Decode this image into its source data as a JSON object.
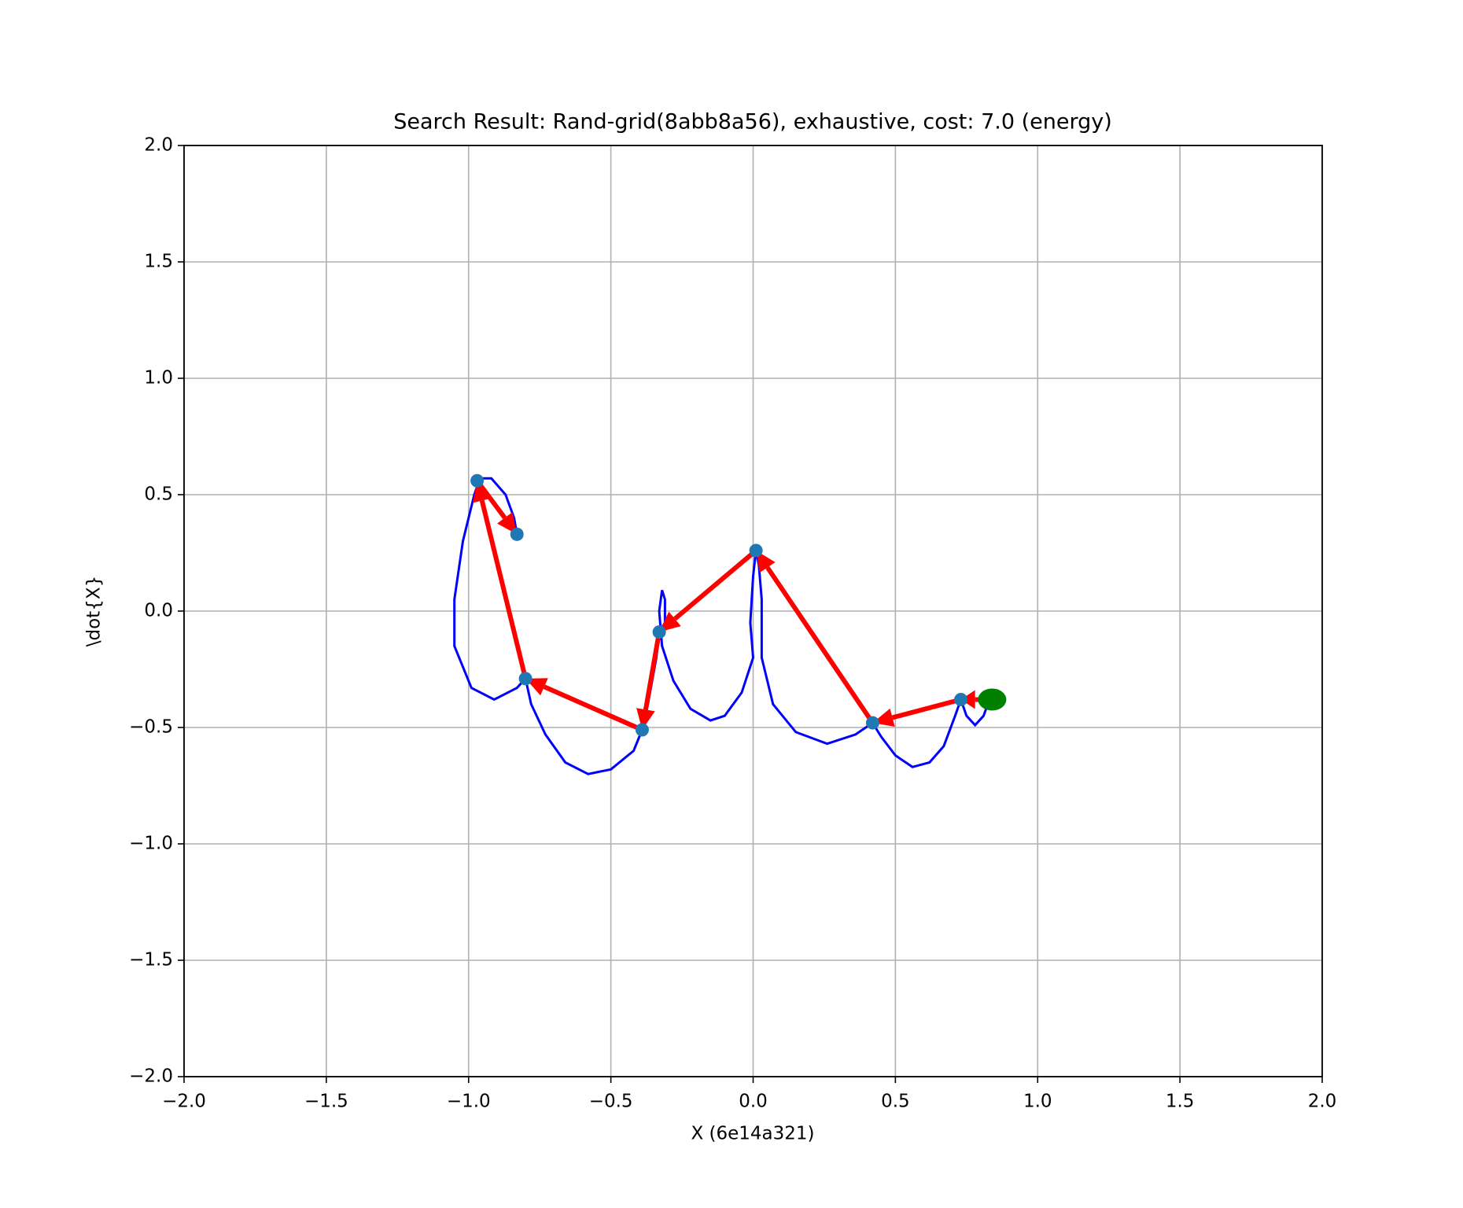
{
  "chart_data": {
    "type": "trajectory",
    "title": "Search Result: Rand-grid(8abb8a56), exhaustive, cost: 7.0 (energy)",
    "xlabel": "X     (6e14a321)",
    "ylabel": "\\dot{X}",
    "xlim": [
      -2,
      2
    ],
    "ylim": [
      -2,
      2
    ],
    "xticks": [
      {
        "value": -2,
        "label": "−2.0"
      },
      {
        "value": -1.5,
        "label": "−1.5"
      },
      {
        "value": -1,
        "label": "−1.0"
      },
      {
        "value": -0.5,
        "label": "−0.5"
      },
      {
        "value": 0,
        "label": "0.0"
      },
      {
        "value": 0.5,
        "label": "0.5"
      },
      {
        "value": 1,
        "label": "1.0"
      },
      {
        "value": 1.5,
        "label": "1.5"
      },
      {
        "value": 2,
        "label": "2.0"
      }
    ],
    "yticks": [
      {
        "value": -2,
        "label": "−2.0"
      },
      {
        "value": -1.5,
        "label": "−1.5"
      },
      {
        "value": -1,
        "label": "−1.0"
      },
      {
        "value": -0.5,
        "label": "−0.5"
      },
      {
        "value": 0,
        "label": "0.0"
      },
      {
        "value": 0.5,
        "label": "0.5"
      },
      {
        "value": 1,
        "label": "1.0"
      },
      {
        "value": 1.5,
        "label": "1.5"
      },
      {
        "value": 2,
        "label": "2.0"
      }
    ],
    "grid": true,
    "trajectory": {
      "color": "#0000ff",
      "x": [
        0.83,
        0.81,
        0.78,
        0.75,
        0.73,
        0.71,
        0.67,
        0.62,
        0.56,
        0.5,
        0.45,
        0.42,
        0.36,
        0.26,
        0.15,
        0.07,
        0.03,
        0.03,
        0.02,
        0.01,
        0.0,
        -0.01,
        0.0,
        -0.04,
        -0.1,
        -0.15,
        -0.22,
        -0.28,
        -0.32,
        -0.33,
        -0.32,
        -0.31,
        -0.31,
        -0.33,
        -0.34,
        -0.37,
        -0.39,
        -0.42,
        -0.5,
        -0.58,
        -0.66,
        -0.73,
        -0.78,
        -0.8,
        -0.83,
        -0.91,
        -0.99,
        -1.05,
        -1.05,
        -1.02,
        -0.98,
        -0.96,
        -0.92,
        -0.87,
        -0.84,
        -0.83
      ],
      "y": [
        -0.38,
        -0.45,
        -0.49,
        -0.45,
        -0.38,
        -0.45,
        -0.58,
        -0.65,
        -0.67,
        -0.62,
        -0.54,
        -0.48,
        -0.53,
        -0.57,
        -0.52,
        -0.4,
        -0.2,
        0.05,
        0.2,
        0.26,
        0.15,
        -0.05,
        -0.2,
        -0.35,
        -0.45,
        -0.47,
        -0.42,
        -0.3,
        -0.15,
        0.0,
        0.09,
        0.05,
        -0.05,
        -0.09,
        -0.2,
        -0.4,
        -0.51,
        -0.6,
        -0.68,
        -0.7,
        -0.65,
        -0.53,
        -0.4,
        -0.29,
        -0.33,
        -0.38,
        -0.33,
        -0.15,
        0.05,
        0.3,
        0.5,
        0.57,
        0.57,
        0.5,
        0.4,
        0.33
      ]
    },
    "points": {
      "color": "#1f77b4",
      "x": [
        0.83,
        0.73,
        0.42,
        0.01,
        -0.33,
        -0.39,
        -0.8,
        -0.97,
        -0.83
      ],
      "y": [
        -0.38,
        -0.38,
        -0.48,
        0.26,
        -0.09,
        -0.51,
        -0.29,
        0.56,
        0.33
      ]
    },
    "arrow_color": "#ff0000",
    "start": {
      "x": 0.84,
      "y": -0.38,
      "color": "#008000"
    }
  }
}
